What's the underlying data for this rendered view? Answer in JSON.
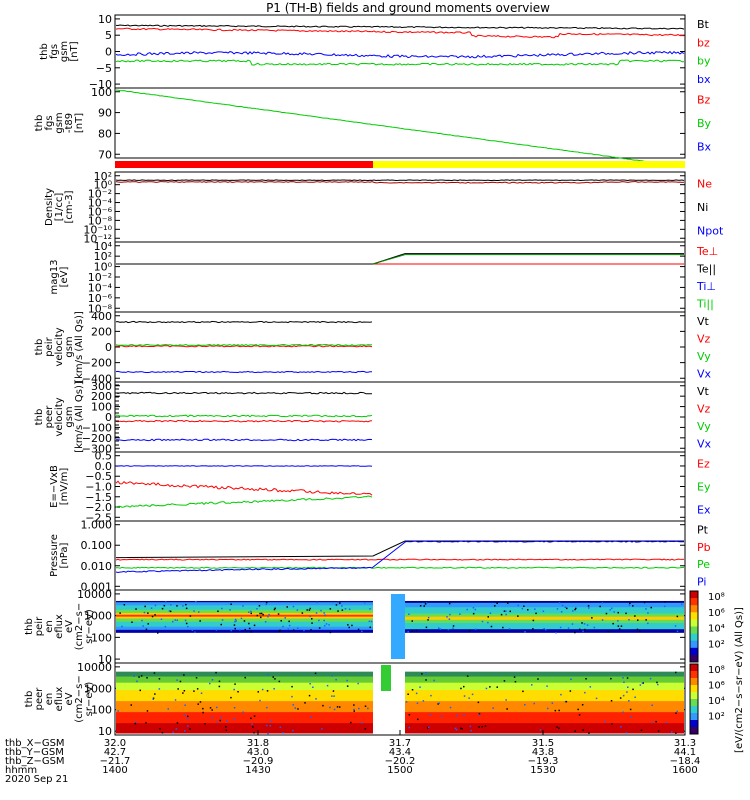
{
  "title": "P1 (TH-B) fields and ground moments overview",
  "panels": [
    {
      "id": "fgs",
      "ylabel": [
        "thb",
        "fgs",
        "gsm",
        "[nT]"
      ],
      "ticks": [
        {
          "v": 10,
          "t": "10"
        },
        {
          "v": 5,
          "t": "5"
        },
        {
          "v": 0,
          "t": "0"
        },
        {
          "v": -5,
          "t": "−5"
        },
        {
          "v": -10,
          "t": "−10"
        }
      ],
      "legend": [
        {
          "t": "Bt",
          "c": "#000000"
        },
        {
          "t": "bz",
          "c": "#ff0000"
        },
        {
          "t": "by",
          "c": "#00cc00"
        },
        {
          "t": "bx",
          "c": "#0000ff"
        }
      ]
    },
    {
      "id": "fgs-t89",
      "ylabel": [
        "thb",
        "fgs",
        "gsm",
        "-t89",
        "[nT]"
      ],
      "ticks": [
        {
          "v": 100,
          "t": "100"
        },
        {
          "v": 90,
          "t": "90"
        },
        {
          "v": 80,
          "t": "80"
        },
        {
          "v": 70,
          "t": "70"
        }
      ],
      "legend": [
        {
          "t": "Bz",
          "c": "#ff0000"
        },
        {
          "t": "By",
          "c": "#00cc00"
        },
        {
          "t": "Bx",
          "c": "#0000ff"
        }
      ]
    },
    {
      "id": "density",
      "ylabel": [
        "Density",
        "[1/cc]",
        "[cm-3]"
      ],
      "ticks": [
        {
          "v": 2,
          "t": "10²"
        },
        {
          "v": 0,
          "t": "10⁰"
        },
        {
          "v": -2,
          "t": "10⁻²"
        },
        {
          "v": -4,
          "t": "10⁻⁴"
        },
        {
          "v": -6,
          "t": "10⁻⁶"
        },
        {
          "v": -8,
          "t": "10⁻⁸"
        },
        {
          "v": -10,
          "t": "10⁻¹⁰"
        },
        {
          "v": -12,
          "t": "10⁻¹²"
        }
      ],
      "legend": [
        {
          "t": "Ne",
          "c": "#ff0000"
        },
        {
          "t": "Ni",
          "c": "#000000"
        },
        {
          "t": "Npot",
          "c": "#0000ff"
        }
      ]
    },
    {
      "id": "temp",
      "ylabel": [
        "mag13",
        "[eV]"
      ],
      "ticks": [
        {
          "v": 4,
          "t": "10⁴"
        },
        {
          "v": 2,
          "t": "10²"
        },
        {
          "v": 0,
          "t": "10⁰"
        },
        {
          "v": -2,
          "t": "10⁻²"
        },
        {
          "v": -4,
          "t": "10⁻⁴"
        },
        {
          "v": -6,
          "t": "10⁻⁶"
        },
        {
          "v": -8,
          "t": "10⁻⁸"
        }
      ],
      "legend": [
        {
          "t": "Te⊥",
          "c": "#ff0000"
        },
        {
          "t": "Te||",
          "c": "#000000"
        },
        {
          "t": "Ti⊥",
          "c": "#0000ff"
        },
        {
          "t": "Ti||",
          "c": "#00cc00"
        }
      ]
    },
    {
      "id": "peir-vel",
      "ylabel": [
        "thb",
        "peir",
        "velocity",
        "gsm",
        "[km/s (All Qs)]"
      ],
      "ticks": [
        {
          "v": 400,
          "t": "400"
        },
        {
          "v": 200,
          "t": "200"
        },
        {
          "v": 0,
          "t": "0"
        },
        {
          "v": -200,
          "t": "−200"
        },
        {
          "v": -400,
          "t": "−400"
        }
      ],
      "legend": [
        {
          "t": "Vt",
          "c": "#000000"
        },
        {
          "t": "Vz",
          "c": "#ff0000"
        },
        {
          "t": "Vy",
          "c": "#00cc00"
        },
        {
          "t": "Vx",
          "c": "#0000ff"
        }
      ]
    },
    {
      "id": "peer-vel",
      "ylabel": [
        "thb",
        "peer",
        "velocity",
        "gsm",
        "[km/s (All Qs)]"
      ],
      "ticks": [
        {
          "v": 300,
          "t": "300"
        },
        {
          "v": 200,
          "t": "200"
        },
        {
          "v": 100,
          "t": "100"
        },
        {
          "v": 0,
          "t": "0"
        },
        {
          "v": -100,
          "t": "−100"
        },
        {
          "v": -200,
          "t": "−200"
        },
        {
          "v": -300,
          "t": "−300"
        }
      ],
      "legend": [
        {
          "t": "Vt",
          "c": "#000000"
        },
        {
          "t": "Vz",
          "c": "#ff0000"
        },
        {
          "t": "Vy",
          "c": "#00cc00"
        },
        {
          "t": "Vx",
          "c": "#0000ff"
        }
      ]
    },
    {
      "id": "efield",
      "ylabel": [
        "E=−VxB",
        "[mV/m]"
      ],
      "ticks": [
        {
          "v": 0.5,
          "t": "0.5"
        },
        {
          "v": 0,
          "t": "0.0"
        },
        {
          "v": -0.5,
          "t": "−0.5"
        },
        {
          "v": -1,
          "t": "−1.0"
        },
        {
          "v": -1.5,
          "t": "−1.5"
        },
        {
          "v": -2,
          "t": "−2.0"
        },
        {
          "v": -2.5,
          "t": "−2.5"
        }
      ],
      "legend": [
        {
          "t": "Ez",
          "c": "#ff0000"
        },
        {
          "t": "Ey",
          "c": "#00cc00"
        },
        {
          "t": "Ex",
          "c": "#0000ff"
        }
      ]
    },
    {
      "id": "pressure",
      "ylabel": [
        "Pressure",
        "[nPa]"
      ],
      "ticks": [
        {
          "v": 0,
          "t": "1.000"
        },
        {
          "v": -1,
          "t": "0.100"
        },
        {
          "v": -2,
          "t": "0.010"
        },
        {
          "v": -3,
          "t": "0.001"
        }
      ],
      "legend": [
        {
          "t": "Pt",
          "c": "#000000"
        },
        {
          "t": "Pb",
          "c": "#ff0000"
        },
        {
          "t": "Pe",
          "c": "#00cc00"
        },
        {
          "t": "Pi",
          "c": "#0000ff"
        }
      ]
    },
    {
      "id": "peir-spec",
      "ylabel": [
        "thb",
        "peir",
        "en",
        "eflux",
        "eV",
        "(cm2−s−",
        "sr−eV)"
      ],
      "ticks": [
        {
          "v": 4,
          "t": "10000"
        },
        {
          "v": 3,
          "t": "1000"
        },
        {
          "v": 2,
          "t": "100"
        },
        {
          "v": 1,
          "t": "10"
        }
      ],
      "legend": [],
      "colorbar": {
        "ticks": [
          "10⁸",
          "10⁶",
          "10⁴",
          "10²"
        ],
        "label": "[eV/(cm2−s−sr−eV) (All Qs)]"
      }
    },
    {
      "id": "peer-spec",
      "ylabel": [
        "thb",
        "peer",
        "en",
        "eflux",
        "eV",
        "(cm2−s−",
        "sr−eV)"
      ],
      "ticks": [
        {
          "v": 4,
          "t": "10000"
        },
        {
          "v": 3,
          "t": "1000"
        },
        {
          "v": 2,
          "t": "100"
        },
        {
          "v": 1,
          "t": "10"
        }
      ],
      "legend": [],
      "colorbar": {
        "ticks": [
          "10⁸",
          "10⁶",
          "10⁴",
          "10²"
        ],
        "label": "[eV/(cm2−s−sr−eV) (All Qs)]"
      }
    }
  ],
  "xaxis": {
    "rows": [
      {
        "label": "thb_X−GSM",
        "values": [
          "32.0",
          "31.8",
          "31.7",
          "31.5",
          "31.3"
        ]
      },
      {
        "label": "thb_Y−GSM",
        "values": [
          "42.7",
          "43.0",
          "43.4",
          "43.8",
          "44.1"
        ]
      },
      {
        "label": "thb_Z−GSM",
        "values": [
          "−21.7",
          "−20.9",
          "−20.2",
          "−19.3",
          "−18.4"
        ]
      },
      {
        "label": "hhmm",
        "values": [
          "1400",
          "1430",
          "1500",
          "1530",
          "1600"
        ]
      }
    ],
    "date": "2020 Sep 21"
  },
  "chart_data": [
    {
      "type": "line",
      "panel": "fgs",
      "x": [
        "14:00",
        "15:00",
        "16:00"
      ],
      "series": [
        {
          "name": "Bt",
          "values": [
            8,
            7.5,
            7
          ]
        },
        {
          "name": "bz",
          "values": [
            7,
            6,
            5
          ]
        },
        {
          "name": "by",
          "values": [
            -2.5,
            -4,
            -3
          ]
        },
        {
          "name": "bx",
          "values": [
            -1,
            -1,
            -1
          ]
        }
      ],
      "ylim": [
        -10,
        11
      ]
    },
    {
      "type": "line",
      "panel": "fgs-t89",
      "x": [
        "14:00",
        "15:00",
        "16:00"
      ],
      "series": [
        {
          "name": "By",
          "values": [
            101,
            84,
            64
          ]
        }
      ],
      "ylim": [
        63,
        102
      ]
    },
    {
      "type": "line",
      "panel": "density",
      "ylim_log10": [
        -13,
        3
      ],
      "x": [
        "14:00",
        "14:50",
        "16:00"
      ],
      "series": [
        {
          "name": "Ne",
          "values_log10": [
            0.6,
            0.5,
            0.6
          ]
        },
        {
          "name": "Ni",
          "values_log10": [
            1,
            1,
            1
          ]
        }
      ]
    },
    {
      "type": "line",
      "panel": "temp",
      "ylim_log10": [
        -9,
        4
      ],
      "x": [
        "14:00",
        "14:50",
        "14:57",
        "16:00"
      ],
      "series": [
        {
          "name": "Te⊥",
          "values_log10": [
            0.5,
            0.5,
            0.5,
            0.5
          ]
        },
        {
          "name": "Te||",
          "values_log10": [
            0.5,
            0.5,
            2.5,
            2.5
          ]
        }
      ]
    },
    {
      "type": "line",
      "panel": "peir-vel",
      "ylim": [
        -420,
        420
      ],
      "x": [
        "14:00",
        "14:50"
      ],
      "series": [
        {
          "name": "Vt",
          "values": [
            320,
            320
          ]
        },
        {
          "name": "Vz",
          "values": [
            10,
            10
          ]
        },
        {
          "name": "Vy",
          "values": [
            20,
            20
          ]
        },
        {
          "name": "Vx",
          "values": [
            -320,
            -320
          ]
        }
      ]
    },
    {
      "type": "line",
      "panel": "peer-vel",
      "ylim": [
        -320,
        320
      ],
      "x": [
        "14:00",
        "14:50"
      ],
      "series": [
        {
          "name": "Vt",
          "values": [
            230,
            230
          ]
        },
        {
          "name": "Vz",
          "values": [
            -40,
            -40
          ]
        },
        {
          "name": "Vy",
          "values": [
            10,
            10
          ]
        },
        {
          "name": "Vx",
          "values": [
            -220,
            -220
          ]
        }
      ]
    },
    {
      "type": "line",
      "panel": "efield",
      "ylim": [
        -2.5,
        0.5
      ],
      "x": [
        "14:00",
        "14:20",
        "14:40",
        "14:50"
      ],
      "series": [
        {
          "name": "Ex",
          "values": [
            0,
            0,
            0,
            0
          ]
        },
        {
          "name": "Ez",
          "values": [
            -0.8,
            -1.0,
            -1.1,
            -1.4
          ]
        },
        {
          "name": "Ey",
          "values": [
            -2.0,
            -1.8,
            -1.6,
            -1.5
          ]
        }
      ]
    },
    {
      "type": "line",
      "panel": "pressure",
      "ylim_log10": [
        -3,
        0
      ],
      "x": [
        "14:00",
        "14:50",
        "15:00",
        "16:00"
      ],
      "series": [
        {
          "name": "Pt",
          "values": [
            0.025,
            0.03,
            0.16,
            0.16
          ]
        },
        {
          "name": "Pb",
          "values": [
            0.02,
            0.02,
            0.02,
            0.018
          ]
        },
        {
          "name": "Pe",
          "values": [
            0.008,
            0.009,
            0.008,
            0.009
          ]
        },
        {
          "name": "Pi",
          "values": [
            0.005,
            0.008,
            0.14,
            0.15
          ]
        }
      ]
    },
    {
      "type": "heatmap",
      "panel": "peir-spec",
      "zlim_log10": [
        1,
        8
      ],
      "x_range": [
        "14:00",
        "16:00"
      ],
      "y_range": [
        5,
        20000
      ]
    },
    {
      "type": "heatmap",
      "panel": "peer-spec",
      "zlim_log10": [
        1,
        8
      ],
      "x_range": [
        "14:00",
        "16:00"
      ],
      "y_range": [
        5,
        20000
      ]
    }
  ]
}
